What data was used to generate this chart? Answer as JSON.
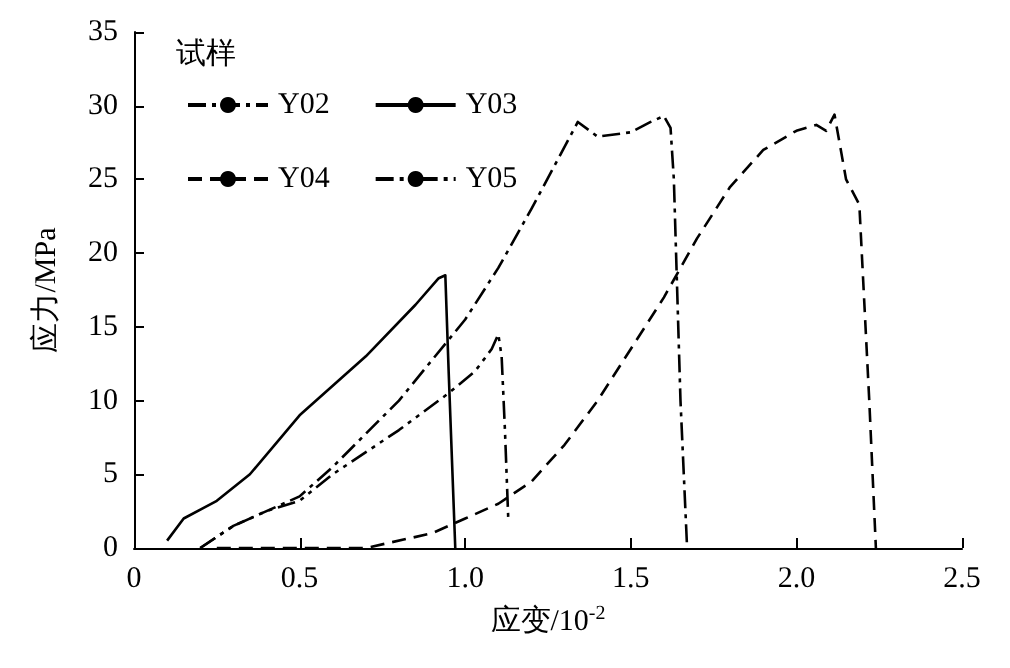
{
  "chart_data": {
    "type": "line",
    "xlabel": "应变/10$^{-2}$",
    "ylabel": "应力/MPa",
    "legend_title": "试样",
    "legend": "top left",
    "grid": false,
    "marker": "none",
    "xlim": [
      0,
      2.5
    ],
    "ylim": [
      0,
      35
    ],
    "xticks": [
      0,
      0.5,
      {
        "value": 1,
        "label": "1.0"
      },
      1.5,
      {
        "value": 2,
        "label": "2.0"
      },
      2.5
    ],
    "yticks": [
      0,
      5,
      10,
      15,
      20,
      25,
      30,
      35
    ],
    "series": [
      {
        "name": "Y02",
        "color": "#000000",
        "line_style": "dashdot",
        "x": [
          0.2,
          0.3,
          0.4,
          0.5,
          0.6,
          0.8,
          1.0,
          1.1,
          1.2,
          1.34,
          1.4,
          1.5,
          1.56,
          1.6,
          1.62,
          1.63,
          1.65,
          1.67
        ],
        "values": [
          0,
          1.5,
          2.5,
          3.5,
          5.5,
          10,
          15.5,
          19,
          23,
          28.9,
          27.9,
          28.2,
          28.9,
          29.3,
          28.5,
          25,
          10,
          0
        ]
      },
      {
        "name": "Y03",
        "color": "#000000",
        "line_style": "solid",
        "x": [
          0.1,
          0.15,
          0.25,
          0.35,
          0.5,
          0.7,
          0.85,
          0.92,
          0.94,
          0.95,
          0.97
        ],
        "values": [
          0.5,
          2,
          3.2,
          5,
          9,
          13,
          16.5,
          18.3,
          18.5,
          12,
          0
        ]
      },
      {
        "name": "Y04",
        "color": "#000000",
        "line_style": "dashed",
        "x": [
          0.25,
          0.5,
          0.7,
          0.9,
          1.0,
          1.1,
          1.2,
          1.3,
          1.4,
          1.5,
          1.6,
          1.7,
          1.8,
          1.9,
          2.0,
          2.06,
          2.09,
          2.115,
          2.15,
          2.19,
          2.22,
          2.24
        ],
        "values": [
          0,
          0,
          0,
          1,
          2,
          3,
          4.5,
          7,
          10,
          13.5,
          17,
          21,
          24.5,
          27,
          28.3,
          28.7,
          28.3,
          29.4,
          25,
          23.3,
          10,
          0
        ]
      },
      {
        "name": "Y05",
        "color": "#000000",
        "line_style": "dashdotdot",
        "x": [
          0.2,
          0.3,
          0.4,
          0.5,
          0.6,
          0.8,
          0.95,
          1.03,
          1.08,
          1.1,
          1.11,
          1.12,
          1.13
        ],
        "values": [
          0,
          1.5,
          2.5,
          3.2,
          5,
          8,
          10.5,
          12,
          13.5,
          14.5,
          13,
          8,
          2
        ]
      }
    ]
  }
}
